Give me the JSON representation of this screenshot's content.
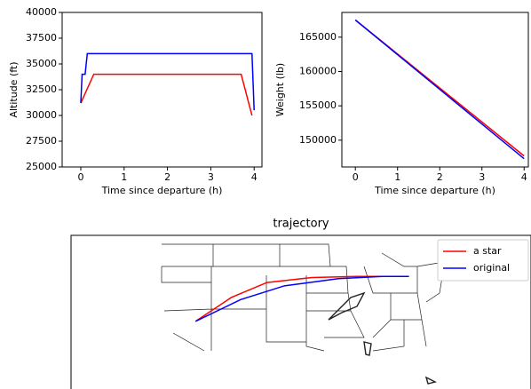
{
  "chart_data": [
    {
      "type": "line",
      "xlabel": "Time since departure (h)",
      "ylabel": "Altitude (ft)",
      "xlim": [
        -0.43,
        4.18
      ],
      "xticks": [
        0,
        1,
        2,
        3,
        4
      ],
      "ylim": [
        25000,
        40000
      ],
      "yticks": [
        25000,
        27500,
        30000,
        32500,
        35000,
        37500,
        40000
      ],
      "series": [
        {
          "color": "#ff0000",
          "x": [
            0,
            0.3,
            3.7,
            3.95
          ],
          "values": [
            31200,
            34000,
            34000,
            30000
          ]
        },
        {
          "color": "#0000ff",
          "x": [
            0,
            0.03,
            0.1,
            0.15,
            1,
            2,
            3,
            3.95,
            4.0
          ],
          "values": [
            31200,
            34000,
            34000,
            36000,
            36000,
            36000,
            36000,
            36000,
            30500
          ]
        }
      ]
    },
    {
      "type": "line",
      "xlabel": "Time since departure (h)",
      "ylabel": "Weight (lb)",
      "xlim": [
        -0.32,
        4.1
      ],
      "xticks": [
        0,
        1,
        2,
        3,
        4
      ],
      "ylim": [
        146100,
        168600
      ],
      "yticks": [
        150000,
        155000,
        160000,
        165000
      ],
      "series": [
        {
          "color": "#ff0000",
          "x": [
            0,
            4
          ],
          "values": [
            167500,
            147700
          ]
        },
        {
          "color": "#0000ff",
          "x": [
            0,
            4
          ],
          "values": [
            167500,
            147300
          ]
        }
      ]
    },
    {
      "type": "line",
      "title": "trajectory",
      "legend": "upper right",
      "xlim": [
        -128.7,
        -73.3
      ],
      "ylim": [
        22.3,
        50
      ],
      "series": [
        {
          "name": "a star",
          "color": "#ff0000",
          "x": [
            -113.7,
            -109.4,
            -105.1,
            -99.7,
            -94.4,
            -88.0
          ],
          "values": [
            34.5,
            38.8,
            41.5,
            42.4,
            42.6,
            42.6
          ]
        },
        {
          "name": "original",
          "color": "#0000ff",
          "x": [
            -113.7,
            -108.3,
            -103.0,
            -96.5,
            -91.2,
            -88.0
          ],
          "values": [
            34.5,
            38.4,
            40.9,
            42.2,
            42.6,
            42.6
          ]
        }
      ]
    }
  ]
}
